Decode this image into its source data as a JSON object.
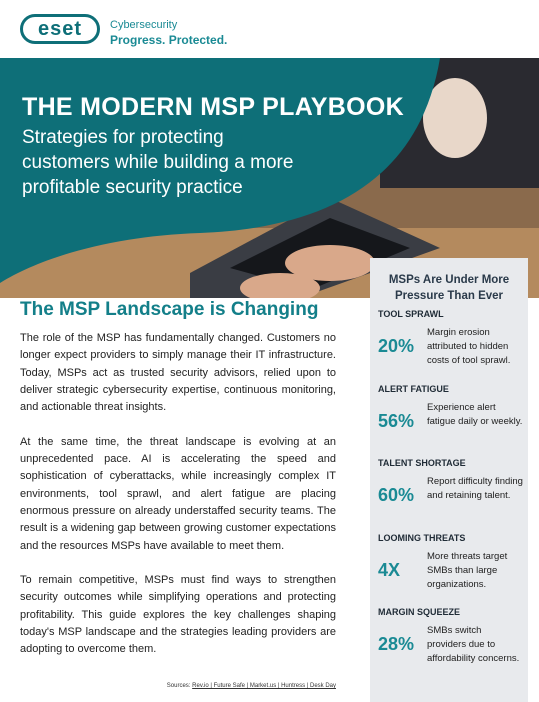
{
  "header": {
    "logo": "eset",
    "tagline_1": "Cybersecurity",
    "tagline_2": "Progress. Protected."
  },
  "banner": {
    "title": "THE MODERN MSP PLAYBOOK",
    "subtitle_lines": [
      "Strategies for protecting",
      "customers while building a more",
      "profitable security practice"
    ]
  },
  "main": {
    "heading": "The MSP Landscape is Changing",
    "paragraphs": [
      "The role of the MSP has fundamentally changed. Customers no longer expect providers to simply manage their IT infrastructure. Today, MSPs act as trusted security advisors, relied upon to deliver strategic cybersecurity expertise, continuous monitoring, and actionable threat insights.",
      "At the same time, the threat landscape is evolving at an unprecedented pace. AI is accelerating the speed and sophistication of cyberattacks, while increasingly complex IT environments, tool sprawl, and alert fatigue are placing enormous pressure on already understaffed security teams. The result is a widening gap between growing customer expectations and the resources MSPs have available to meet them.",
      "To remain competitive, MSPs must find ways to strengthen security outcomes while simplifying operations and protecting profitability. This guide explores the key challenges shaping today's MSP landscape and the strategies leading providers are adopting to overcome them."
    ],
    "sources_label": "Sources:",
    "sources": "Rev.io | Future Safe | Market.us | Huntress | Desk Day"
  },
  "sidebar": {
    "title": "MSPs Are Under More Pressure Than Ever",
    "stats": [
      {
        "label": "TOOL SPRAWL",
        "figure": "20%",
        "text": "Margin erosion attributed to hidden costs of tool sprawl."
      },
      {
        "label": "ALERT FATIGUE",
        "figure": "56%",
        "text": "Experience alert fatigue daily or weekly."
      },
      {
        "label": "TALENT SHORTAGE",
        "figure": "60%",
        "text": "Report difficulty finding and retaining talent."
      },
      {
        "label": "LOOMING THREATS",
        "figure": "4X",
        "text": "More threats target SMBs than large organizations."
      },
      {
        "label": "MARGIN SQUEEZE",
        "figure": "28%",
        "text": "SMBs switch providers due to affordability concerns."
      }
    ]
  }
}
